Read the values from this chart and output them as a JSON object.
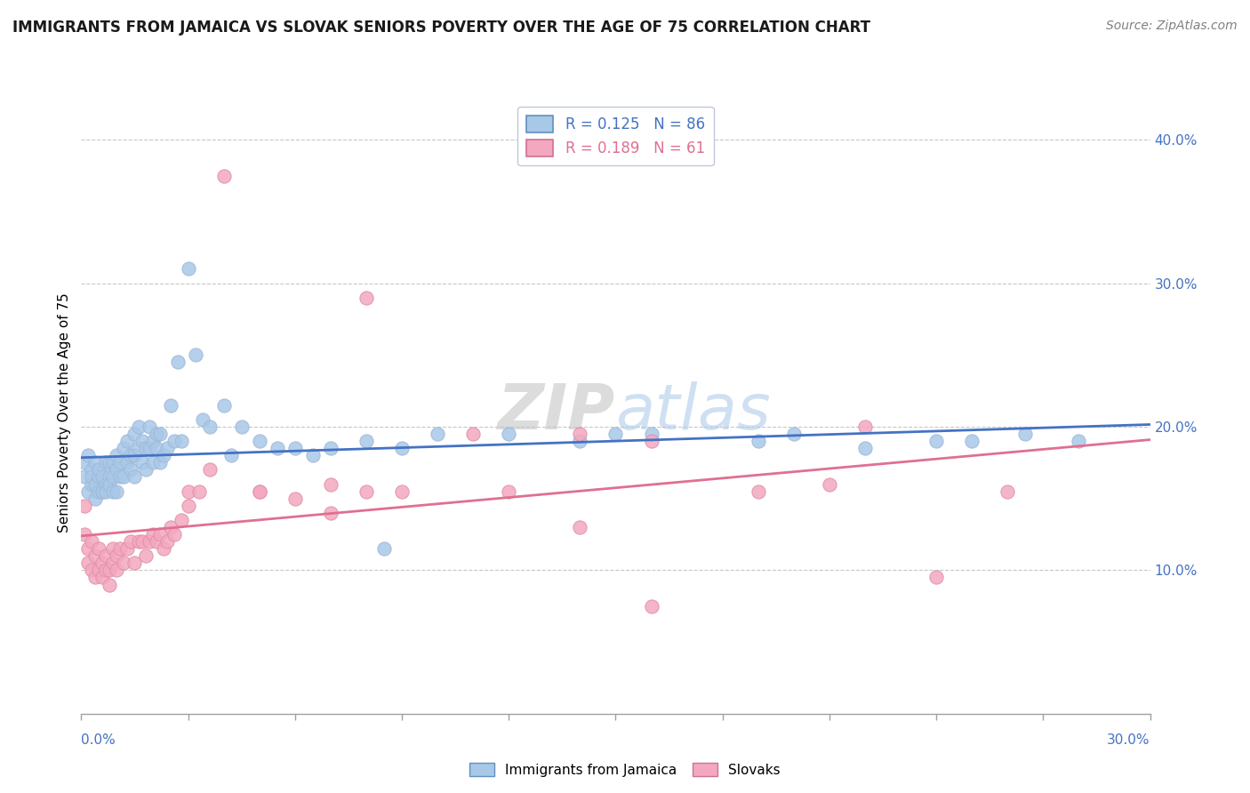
{
  "title": "IMMIGRANTS FROM JAMAICA VS SLOVAK SENIORS POVERTY OVER THE AGE OF 75 CORRELATION CHART",
  "source": "Source: ZipAtlas.com",
  "ylabel_label": "Seniors Poverty Over the Age of 75",
  "legend_entries": [
    {
      "label": "Immigrants from Jamaica",
      "R": "0.125",
      "N": "86",
      "color": "#a8c8e8"
    },
    {
      "label": "Slovaks",
      "R": "0.189",
      "N": "61",
      "color": "#f4a8c0"
    }
  ],
  "watermark": "ZIPatlas",
  "jamaica_color": "#a8c8e8",
  "slovak_color": "#f4a8c0",
  "jamaica_line_color": "#4472c4",
  "slovak_line_color": "#e07090",
  "xmin": 0.0,
  "xmax": 0.3,
  "ymin": 0.0,
  "ymax": 0.42,
  "jamaica_scatter_x": [
    0.001,
    0.001,
    0.002,
    0.002,
    0.003,
    0.003,
    0.003,
    0.004,
    0.004,
    0.004,
    0.005,
    0.005,
    0.005,
    0.006,
    0.006,
    0.006,
    0.007,
    0.007,
    0.007,
    0.008,
    0.008,
    0.008,
    0.009,
    0.009,
    0.009,
    0.01,
    0.01,
    0.01,
    0.011,
    0.011,
    0.012,
    0.012,
    0.013,
    0.013,
    0.014,
    0.014,
    0.015,
    0.015,
    0.015,
    0.016,
    0.016,
    0.017,
    0.017,
    0.018,
    0.018,
    0.019,
    0.019,
    0.02,
    0.02,
    0.021,
    0.021,
    0.022,
    0.022,
    0.023,
    0.024,
    0.025,
    0.026,
    0.027,
    0.028,
    0.03,
    0.032,
    0.034,
    0.036,
    0.04,
    0.042,
    0.045,
    0.05,
    0.055,
    0.06,
    0.065,
    0.07,
    0.08,
    0.09,
    0.1,
    0.12,
    0.14,
    0.16,
    0.19,
    0.22,
    0.25,
    0.265,
    0.28,
    0.085,
    0.15,
    0.2,
    0.24
  ],
  "jamaica_scatter_y": [
    0.165,
    0.175,
    0.155,
    0.18,
    0.16,
    0.17,
    0.165,
    0.15,
    0.16,
    0.175,
    0.155,
    0.165,
    0.17,
    0.155,
    0.165,
    0.155,
    0.16,
    0.175,
    0.155,
    0.165,
    0.175,
    0.16,
    0.155,
    0.175,
    0.165,
    0.17,
    0.18,
    0.155,
    0.175,
    0.165,
    0.185,
    0.165,
    0.175,
    0.19,
    0.18,
    0.17,
    0.18,
    0.195,
    0.165,
    0.185,
    0.2,
    0.19,
    0.175,
    0.185,
    0.17,
    0.2,
    0.185,
    0.19,
    0.175,
    0.195,
    0.185,
    0.175,
    0.195,
    0.18,
    0.185,
    0.215,
    0.19,
    0.245,
    0.19,
    0.31,
    0.25,
    0.205,
    0.2,
    0.215,
    0.18,
    0.2,
    0.19,
    0.185,
    0.185,
    0.18,
    0.185,
    0.19,
    0.185,
    0.195,
    0.195,
    0.19,
    0.195,
    0.19,
    0.185,
    0.19,
    0.195,
    0.19,
    0.115,
    0.195,
    0.195,
    0.19
  ],
  "slovak_scatter_x": [
    0.001,
    0.001,
    0.002,
    0.002,
    0.003,
    0.003,
    0.004,
    0.004,
    0.005,
    0.005,
    0.006,
    0.006,
    0.007,
    0.007,
    0.008,
    0.008,
    0.009,
    0.009,
    0.01,
    0.01,
    0.011,
    0.012,
    0.013,
    0.014,
    0.015,
    0.016,
    0.017,
    0.018,
    0.019,
    0.02,
    0.021,
    0.022,
    0.023,
    0.024,
    0.025,
    0.026,
    0.028,
    0.03,
    0.033,
    0.036,
    0.04,
    0.05,
    0.06,
    0.07,
    0.08,
    0.09,
    0.11,
    0.14,
    0.16,
    0.19,
    0.22,
    0.24,
    0.26,
    0.08,
    0.14,
    0.21,
    0.03,
    0.05,
    0.07,
    0.12,
    0.16
  ],
  "slovak_scatter_y": [
    0.145,
    0.125,
    0.115,
    0.105,
    0.12,
    0.1,
    0.11,
    0.095,
    0.1,
    0.115,
    0.105,
    0.095,
    0.1,
    0.11,
    0.1,
    0.09,
    0.105,
    0.115,
    0.1,
    0.11,
    0.115,
    0.105,
    0.115,
    0.12,
    0.105,
    0.12,
    0.12,
    0.11,
    0.12,
    0.125,
    0.12,
    0.125,
    0.115,
    0.12,
    0.13,
    0.125,
    0.135,
    0.155,
    0.155,
    0.17,
    0.375,
    0.155,
    0.15,
    0.16,
    0.155,
    0.155,
    0.195,
    0.195,
    0.19,
    0.155,
    0.2,
    0.095,
    0.155,
    0.29,
    0.13,
    0.16,
    0.145,
    0.155,
    0.14,
    0.155,
    0.075
  ]
}
